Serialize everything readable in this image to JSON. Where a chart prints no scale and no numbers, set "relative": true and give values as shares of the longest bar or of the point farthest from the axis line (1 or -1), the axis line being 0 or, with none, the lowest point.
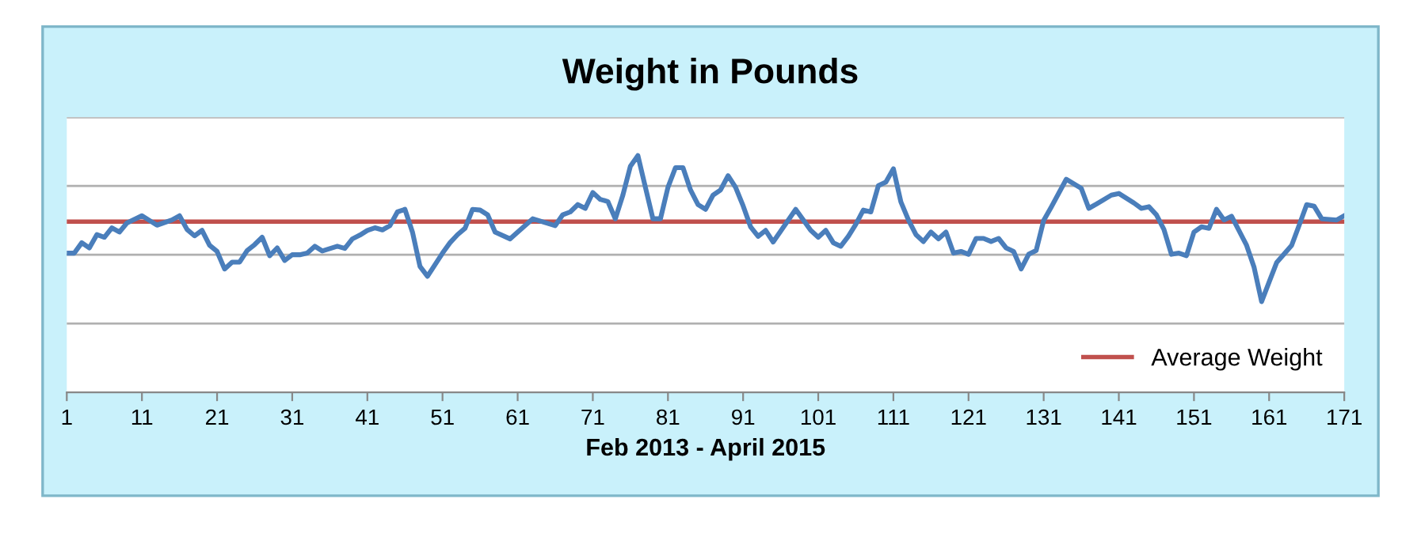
{
  "chart_data": {
    "type": "line",
    "title": "Weight in Pounds",
    "xlabel": "Feb 2013 - April 2015",
    "relative": true,
    "xlim": [
      1,
      171
    ],
    "xticks": [
      1,
      11,
      21,
      31,
      41,
      51,
      61,
      71,
      81,
      91,
      101,
      111,
      121,
      131,
      141,
      151,
      161,
      171
    ],
    "grid": "y",
    "legend": "bottom right",
    "marker": "none",
    "line_style": "solid",
    "tick_labels": "x",
    "ref_lines": [
      {
        "axis": "y",
        "value": 0.721,
        "label": "Average Weight",
        "color": "#c0504d"
      }
    ],
    "series": [
      {
        "color": "#4a7ebb",
        "x": [
          1,
          2,
          3,
          4,
          5,
          6,
          7,
          8,
          9,
          11,
          13,
          15,
          16,
          17,
          18,
          19,
          20,
          21,
          22,
          23,
          24,
          25,
          26,
          27,
          28,
          29,
          30,
          31,
          32,
          33,
          34,
          35,
          37,
          38,
          39,
          40,
          41,
          42,
          43,
          44,
          45,
          46,
          47,
          48,
          49,
          51,
          52,
          53,
          54,
          55,
          56,
          57,
          58,
          60,
          61,
          63,
          66,
          67,
          68,
          69,
          70,
          71,
          72,
          73,
          74,
          75,
          76,
          77,
          78,
          79,
          80,
          81,
          82,
          83,
          84,
          85,
          86,
          87,
          88,
          89,
          90,
          91,
          92,
          93,
          94,
          95,
          98,
          100,
          101,
          102,
          103,
          104,
          105,
          106,
          107,
          108,
          109,
          110,
          111,
          112,
          113,
          114,
          115,
          116,
          117,
          118,
          119,
          120,
          121,
          122,
          123,
          124,
          125,
          126,
          127,
          128,
          129,
          130,
          131,
          132,
          134,
          136,
          137,
          138,
          140,
          141,
          143,
          144,
          145,
          146,
          147,
          148,
          149,
          150,
          151,
          152,
          153,
          154,
          155,
          156,
          158,
          159,
          160,
          161,
          162,
          164,
          165,
          166,
          167,
          168,
          170,
          171
        ],
        "values": [
          0.588,
          0.588,
          0.632,
          0.61,
          0.666,
          0.655,
          0.695,
          0.677,
          0.715,
          0.746,
          0.706,
          0.728,
          0.746,
          0.688,
          0.661,
          0.684,
          0.621,
          0.595,
          0.521,
          0.55,
          0.55,
          0.599,
          0.624,
          0.655,
          0.577,
          0.61,
          0.557,
          0.581,
          0.581,
          0.588,
          0.617,
          0.597,
          0.617,
          0.608,
          0.648,
          0.664,
          0.684,
          0.695,
          0.686,
          0.704,
          0.762,
          0.773,
          0.677,
          0.532,
          0.49,
          0.588,
          0.632,
          0.666,
          0.693,
          0.773,
          0.77,
          0.75,
          0.677,
          0.648,
          0.677,
          0.733,
          0.704,
          0.75,
          0.762,
          0.793,
          0.777,
          0.844,
          0.815,
          0.806,
          0.733,
          0.833,
          0.955,
          1.0,
          0.866,
          0.733,
          0.733,
          0.866,
          0.949,
          0.949,
          0.855,
          0.793,
          0.773,
          0.833,
          0.855,
          0.915,
          0.866,
          0.788,
          0.699,
          0.659,
          0.684,
          0.635,
          0.773,
          0.684,
          0.655,
          0.684,
          0.632,
          0.617,
          0.659,
          0.71,
          0.77,
          0.762,
          0.873,
          0.888,
          0.944,
          0.804,
          0.728,
          0.666,
          0.637,
          0.677,
          0.648,
          0.677,
          0.588,
          0.595,
          0.583,
          0.65,
          0.65,
          0.637,
          0.65,
          0.61,
          0.595,
          0.521,
          0.583,
          0.599,
          0.726,
          0.782,
          0.9,
          0.862,
          0.777,
          0.795,
          0.833,
          0.84,
          0.8,
          0.777,
          0.784,
          0.75,
          0.688,
          0.583,
          0.588,
          0.577,
          0.677,
          0.699,
          0.693,
          0.773,
          0.728,
          0.744,
          0.621,
          0.528,
          0.383,
          0.466,
          0.548,
          0.621,
          0.706,
          0.793,
          0.786,
          0.733,
          0.728,
          0.746
        ]
      }
    ]
  }
}
